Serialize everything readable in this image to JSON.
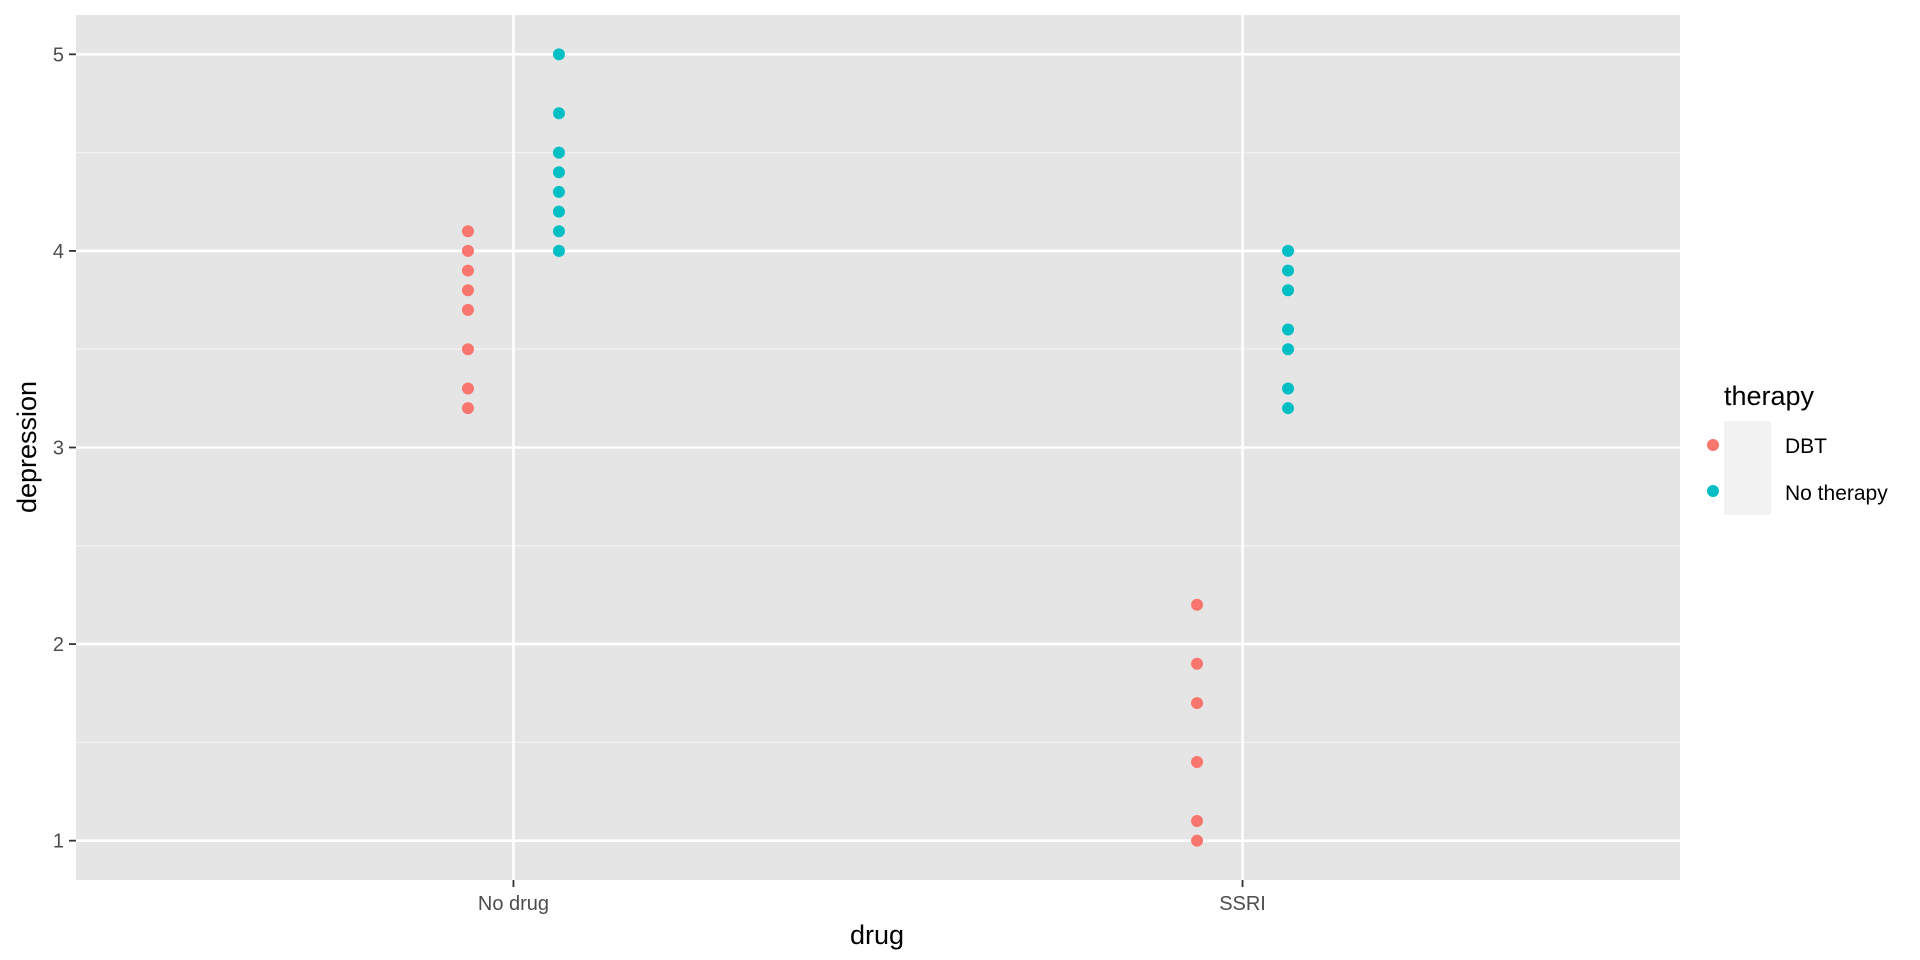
{
  "chart_data": {
    "type": "scatter",
    "xlabel": "drug",
    "ylabel": "depression",
    "categories": [
      "No drug",
      "SSRI"
    ],
    "ylim": [
      0.8,
      5.2
    ],
    "yticks": [
      "1",
      "2",
      "3",
      "4",
      "5"
    ],
    "grid": true,
    "legend": {
      "title": "therapy",
      "placement": "right"
    },
    "series": [
      {
        "name": "DBT",
        "color": "#F8766D",
        "points": [
          {
            "x": "No drug",
            "y": 4.1
          },
          {
            "x": "No drug",
            "y": 4.0
          },
          {
            "x": "No drug",
            "y": 3.9
          },
          {
            "x": "No drug",
            "y": 3.8
          },
          {
            "x": "No drug",
            "y": 3.7
          },
          {
            "x": "No drug",
            "y": 3.5
          },
          {
            "x": "No drug",
            "y": 3.3
          },
          {
            "x": "No drug",
            "y": 3.2
          },
          {
            "x": "SSRI",
            "y": 2.2
          },
          {
            "x": "SSRI",
            "y": 1.9
          },
          {
            "x": "SSRI",
            "y": 1.7
          },
          {
            "x": "SSRI",
            "y": 1.4
          },
          {
            "x": "SSRI",
            "y": 1.1
          },
          {
            "x": "SSRI",
            "y": 1.0
          }
        ]
      },
      {
        "name": "No therapy",
        "color": "#00BFC4",
        "points": [
          {
            "x": "No drug",
            "y": 5.0
          },
          {
            "x": "No drug",
            "y": 4.7
          },
          {
            "x": "No drug",
            "y": 4.5
          },
          {
            "x": "No drug",
            "y": 4.4
          },
          {
            "x": "No drug",
            "y": 4.3
          },
          {
            "x": "No drug",
            "y": 4.2
          },
          {
            "x": "No drug",
            "y": 4.1
          },
          {
            "x": "No drug",
            "y": 4.0
          },
          {
            "x": "SSRI",
            "y": 4.0
          },
          {
            "x": "SSRI",
            "y": 3.9
          },
          {
            "x": "SSRI",
            "y": 3.8
          },
          {
            "x": "SSRI",
            "y": 3.6
          },
          {
            "x": "SSRI",
            "y": 3.5
          },
          {
            "x": "SSRI",
            "y": 3.3
          },
          {
            "x": "SSRI",
            "y": 3.2
          }
        ]
      }
    ]
  }
}
